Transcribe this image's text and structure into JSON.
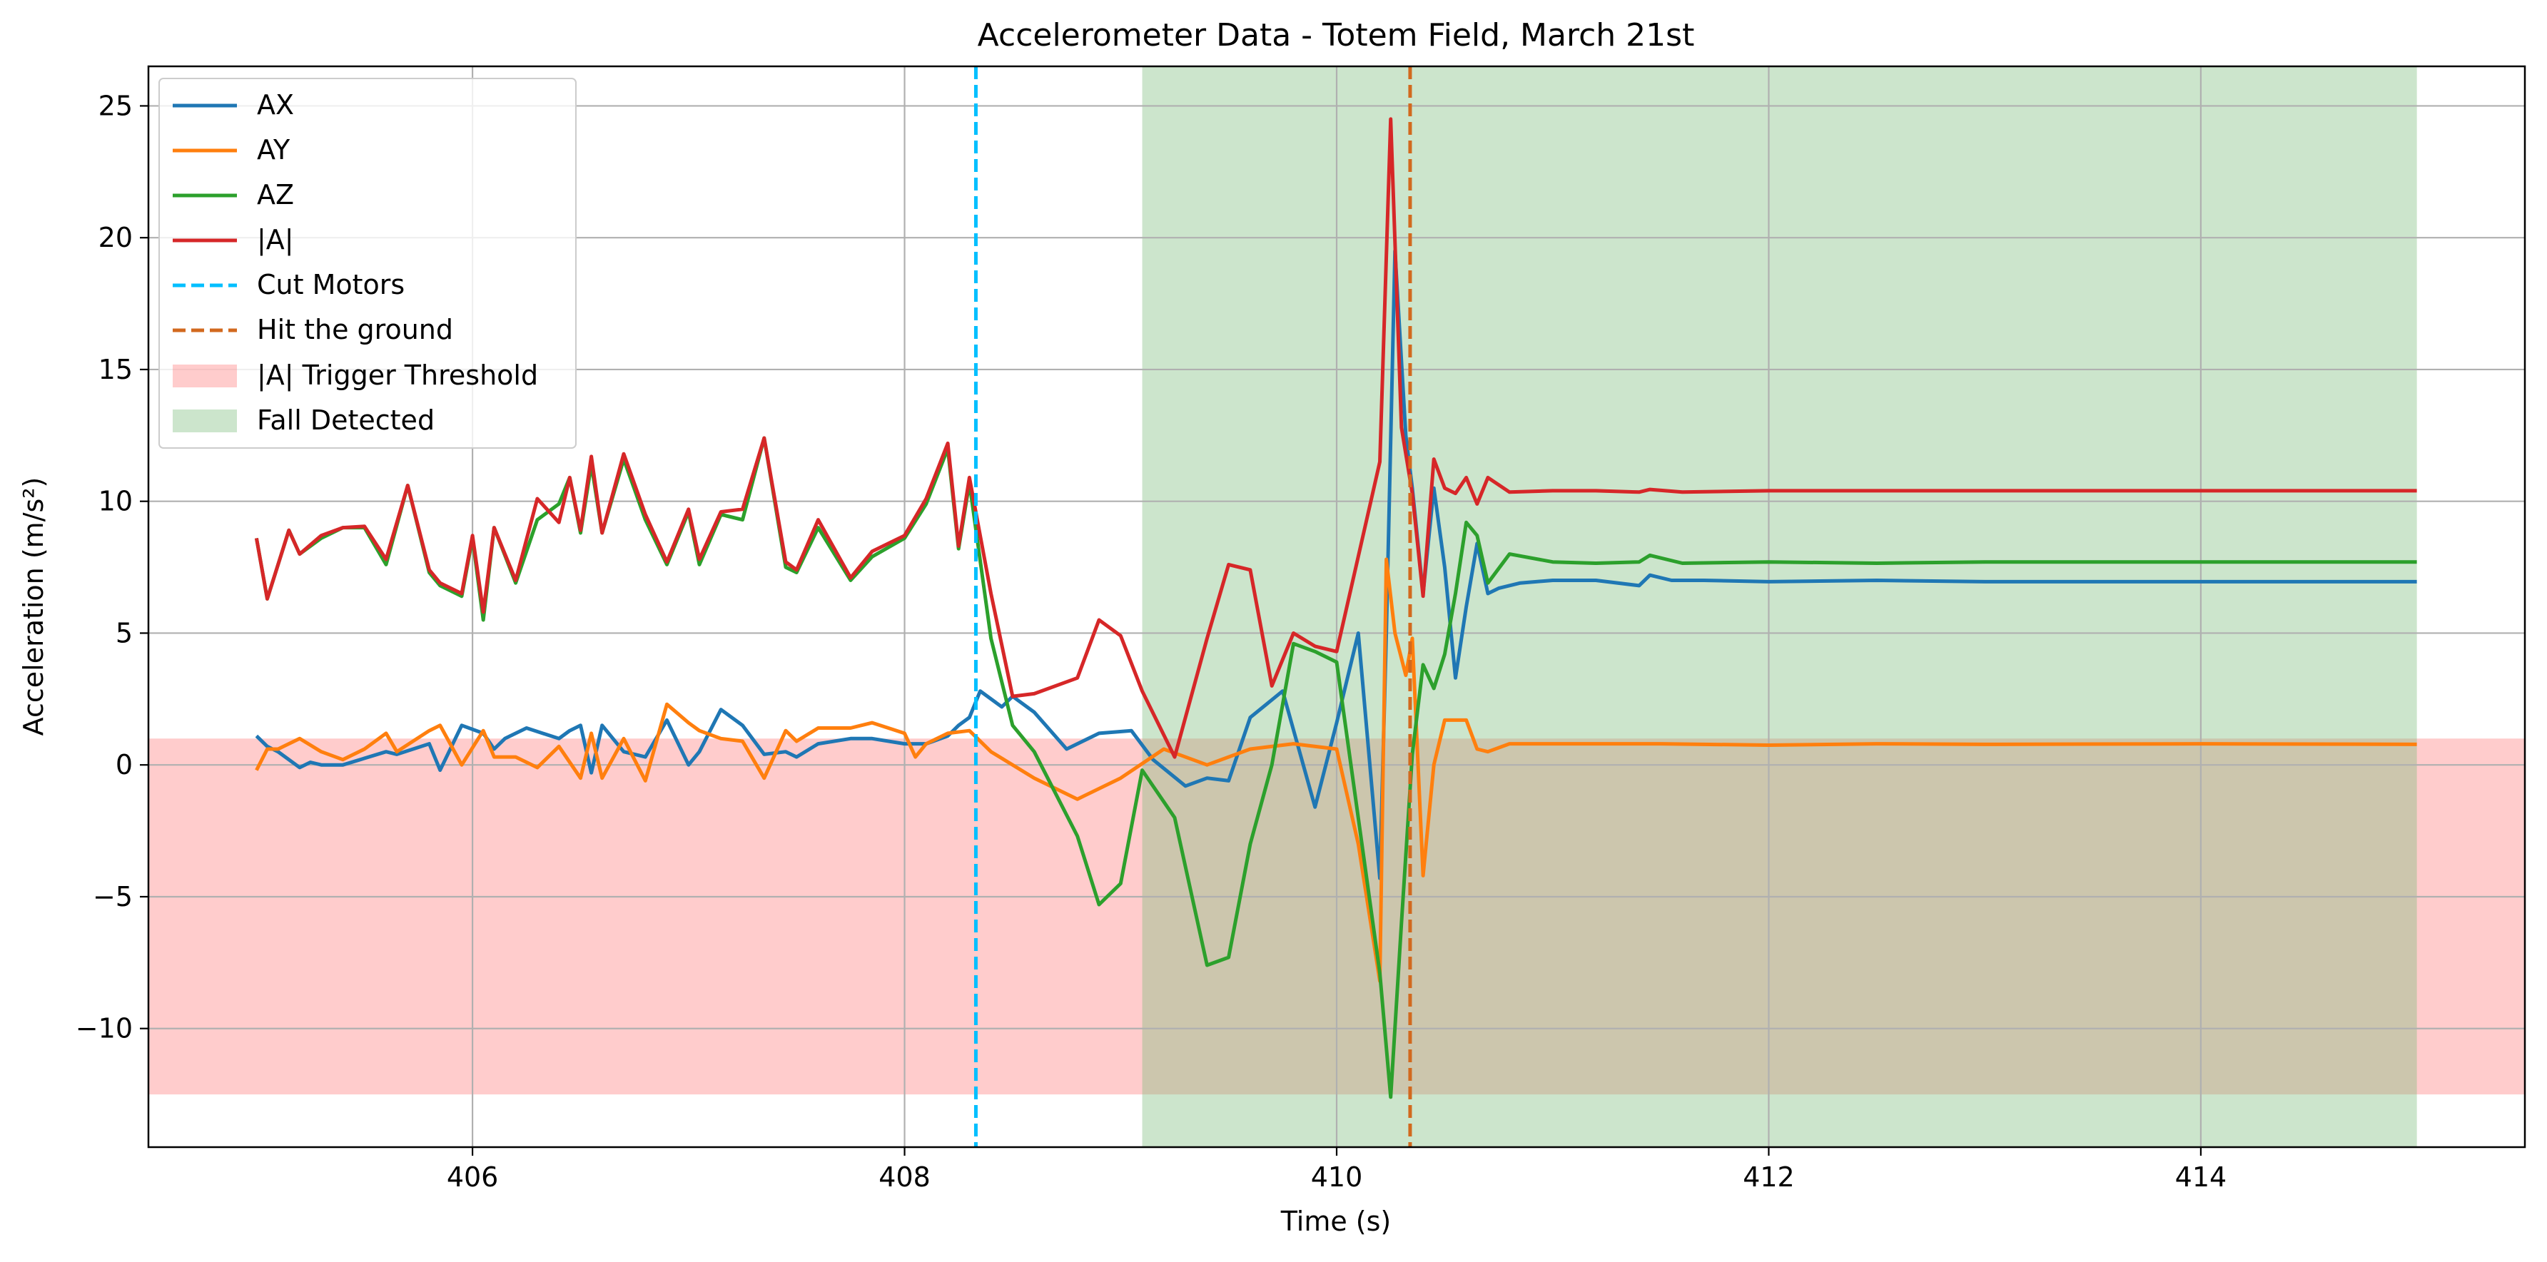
{
  "chart_data": {
    "type": "line",
    "title": "Accelerometer Data - Totem Field, March 21st",
    "xlabel": "Time (s)",
    "ylabel": "Acceleration (m/s²)",
    "xlim": [
      404.5,
      415.5
    ],
    "ylim": [
      -14.5,
      26.5
    ],
    "xticks": [
      406,
      408,
      410,
      412,
      414
    ],
    "xtick_labels": [
      "406",
      "408",
      "410",
      "412",
      "414"
    ],
    "yticks": [
      -10,
      -5,
      0,
      5,
      10,
      15,
      20,
      25
    ],
    "ytick_labels": [
      "−10",
      "−5",
      "0",
      "5",
      "10",
      "15",
      "20",
      "25"
    ],
    "grid": true,
    "legend_position": "top-left",
    "series": [
      {
        "name": "AX",
        "color": "#1f77b4",
        "x": [
          405.0,
          405.05,
          405.1,
          405.2,
          405.25,
          405.3,
          405.4,
          405.6,
          405.65,
          405.8,
          405.85,
          405.95,
          406.05,
          406.1,
          406.15,
          406.25,
          406.4,
          406.45,
          406.5,
          406.55,
          406.6,
          406.7,
          406.8,
          406.9,
          407.0,
          407.05,
          407.15,
          407.25,
          407.35,
          407.45,
          407.5,
          407.6,
          407.75,
          407.85,
          408.0,
          408.1,
          408.2,
          408.25,
          408.3,
          408.35,
          408.45,
          408.5,
          408.6,
          408.75,
          408.9,
          409.05,
          409.15,
          409.3,
          409.4,
          409.5,
          409.6,
          409.75,
          409.9,
          410.0,
          410.1,
          410.2,
          410.23,
          410.27,
          410.32,
          410.35,
          410.4,
          410.45,
          410.5,
          410.55,
          410.6,
          410.65,
          410.7,
          410.75,
          410.85,
          411.0,
          411.2,
          411.4,
          411.45,
          411.55,
          411.7,
          412.0,
          412.5,
          413.0,
          413.5,
          414.0,
          414.5,
          415.0
        ],
        "y": [
          1.1,
          0.7,
          0.5,
          -0.1,
          0.1,
          0.0,
          0.0,
          0.5,
          0.4,
          0.8,
          -0.2,
          1.5,
          1.2,
          0.6,
          1.0,
          1.4,
          1.0,
          1.3,
          1.5,
          -0.3,
          1.5,
          0.5,
          0.3,
          1.7,
          0.0,
          0.5,
          2.1,
          1.5,
          0.4,
          0.5,
          0.3,
          0.8,
          1.0,
          1.0,
          0.8,
          0.8,
          1.1,
          1.5,
          1.8,
          2.8,
          2.2,
          2.6,
          2.0,
          0.6,
          1.2,
          1.3,
          0.2,
          -0.8,
          -0.5,
          -0.6,
          1.8,
          2.8,
          -1.6,
          1.6,
          5.0,
          -4.3,
          5.0,
          19.5,
          12.5,
          10.5,
          6.5,
          10.5,
          7.5,
          3.3,
          6.0,
          8.4,
          6.5,
          6.7,
          6.9,
          7.0,
          7.0,
          6.8,
          7.2,
          7.0,
          7.0,
          6.95,
          7.0,
          6.95,
          6.95,
          6.95,
          6.95,
          6.95
        ]
      },
      {
        "name": "AY",
        "color": "#ff7f0e",
        "x": [
          405.0,
          405.05,
          405.1,
          405.2,
          405.3,
          405.4,
          405.5,
          405.6,
          405.65,
          405.8,
          405.85,
          405.95,
          406.05,
          406.1,
          406.2,
          406.3,
          406.4,
          406.5,
          406.55,
          406.6,
          406.7,
          406.8,
          406.9,
          407.0,
          407.05,
          407.15,
          407.25,
          407.35,
          407.45,
          407.5,
          407.6,
          407.75,
          407.85,
          408.0,
          408.05,
          408.1,
          408.2,
          408.3,
          408.4,
          408.6,
          408.8,
          409.0,
          409.2,
          409.4,
          409.6,
          409.8,
          410.0,
          410.1,
          410.2,
          410.23,
          410.27,
          410.32,
          410.35,
          410.4,
          410.45,
          410.5,
          410.55,
          410.6,
          410.65,
          410.7,
          410.8,
          411.0,
          411.5,
          412.0,
          412.5,
          413.0,
          414.0,
          415.0
        ],
        "y": [
          -0.2,
          0.6,
          0.6,
          1.0,
          0.5,
          0.2,
          0.6,
          1.2,
          0.5,
          1.3,
          1.5,
          0.0,
          1.3,
          0.3,
          0.3,
          -0.1,
          0.7,
          -0.5,
          1.2,
          -0.5,
          1.0,
          -0.6,
          2.3,
          1.6,
          1.3,
          1.0,
          0.9,
          -0.5,
          1.3,
          0.9,
          1.4,
          1.4,
          1.6,
          1.2,
          0.3,
          0.8,
          1.2,
          1.3,
          0.5,
          -0.5,
          -1.3,
          -0.5,
          0.6,
          0.0,
          0.6,
          0.8,
          0.6,
          -3.0,
          -8.2,
          7.8,
          5.0,
          3.4,
          4.8,
          -4.2,
          0.0,
          1.7,
          1.7,
          1.7,
          0.6,
          0.5,
          0.8,
          0.8,
          0.8,
          0.75,
          0.8,
          0.78,
          0.8,
          0.78
        ]
      },
      {
        "name": "AZ",
        "color": "#2ca02c",
        "x": [
          405.0,
          405.05,
          405.15,
          405.2,
          405.3,
          405.4,
          405.5,
          405.6,
          405.7,
          405.8,
          405.85,
          405.95,
          406.0,
          406.05,
          406.1,
          406.2,
          406.3,
          406.4,
          406.45,
          406.5,
          406.55,
          406.6,
          406.7,
          406.8,
          406.9,
          407.0,
          407.05,
          407.15,
          407.25,
          407.35,
          407.45,
          407.5,
          407.6,
          407.75,
          407.85,
          408.0,
          408.1,
          408.2,
          408.25,
          408.3,
          408.4,
          408.5,
          408.6,
          408.8,
          408.9,
          409.0,
          409.1,
          409.25,
          409.4,
          409.5,
          409.6,
          409.7,
          409.8,
          409.9,
          410.0,
          410.2,
          410.25,
          410.3,
          410.35,
          410.4,
          410.45,
          410.5,
          410.55,
          410.6,
          410.65,
          410.7,
          410.8,
          411.0,
          411.2,
          411.4,
          411.45,
          411.6,
          412.0,
          412.5,
          413.0,
          413.5,
          414.0,
          414.5,
          415.0
        ],
        "y": [
          8.6,
          6.3,
          8.9,
          8.0,
          8.6,
          9.0,
          9.0,
          7.6,
          10.6,
          7.3,
          6.8,
          6.4,
          8.6,
          5.5,
          9.0,
          6.9,
          9.3,
          9.9,
          10.9,
          8.8,
          11.4,
          8.8,
          11.6,
          9.3,
          7.6,
          9.6,
          7.6,
          9.5,
          9.3,
          12.4,
          7.5,
          7.3,
          9.0,
          7.0,
          7.9,
          8.6,
          9.9,
          12.0,
          8.2,
          10.7,
          4.8,
          1.5,
          0.5,
          -2.7,
          -5.3,
          -4.5,
          -0.2,
          -2.0,
          -7.6,
          -7.3,
          -3.0,
          0.0,
          4.6,
          4.3,
          3.9,
          -7.9,
          -12.6,
          -6.0,
          0.4,
          3.8,
          2.9,
          4.2,
          6.5,
          9.2,
          8.7,
          6.9,
          8.0,
          7.7,
          7.65,
          7.7,
          7.95,
          7.65,
          7.7,
          7.65,
          7.7,
          7.7,
          7.7,
          7.7,
          7.7
        ]
      },
      {
        "name": "|A|",
        "color": "#d62728",
        "x": [
          405.0,
          405.05,
          405.15,
          405.2,
          405.3,
          405.4,
          405.5,
          405.6,
          405.7,
          405.8,
          405.85,
          405.95,
          406.0,
          406.05,
          406.1,
          406.2,
          406.3,
          406.4,
          406.45,
          406.5,
          406.55,
          406.6,
          406.7,
          406.8,
          406.9,
          407.0,
          407.05,
          407.15,
          407.25,
          407.35,
          407.45,
          407.5,
          407.6,
          407.75,
          407.85,
          408.0,
          408.1,
          408.2,
          408.25,
          408.3,
          408.4,
          408.5,
          408.6,
          408.8,
          408.9,
          409.0,
          409.1,
          409.25,
          409.4,
          409.5,
          409.6,
          409.7,
          409.8,
          409.9,
          410.0,
          410.2,
          410.25,
          410.3,
          410.35,
          410.4,
          410.45,
          410.5,
          410.55,
          410.6,
          410.65,
          410.7,
          410.8,
          411.0,
          411.2,
          411.4,
          411.45,
          411.6,
          412.0,
          412.5,
          413.0,
          413.5,
          414.0,
          414.5,
          415.0
        ],
        "y": [
          8.6,
          6.3,
          8.9,
          8.0,
          8.7,
          9.0,
          9.05,
          7.8,
          10.6,
          7.4,
          6.9,
          6.5,
          8.7,
          5.8,
          9.0,
          7.0,
          10.1,
          9.2,
          10.9,
          8.9,
          11.7,
          8.8,
          11.8,
          9.5,
          7.7,
          9.7,
          7.8,
          9.6,
          9.7,
          12.4,
          7.7,
          7.4,
          9.3,
          7.1,
          8.1,
          8.7,
          10.1,
          12.2,
          8.3,
          10.9,
          6.5,
          2.6,
          2.7,
          3.3,
          5.5,
          4.9,
          2.8,
          0.3,
          4.8,
          7.6,
          7.4,
          3.0,
          5.0,
          4.5,
          4.3,
          11.5,
          24.5,
          12.8,
          10.3,
          6.4,
          11.6,
          10.5,
          10.3,
          10.9,
          9.9,
          10.9,
          10.35,
          10.4,
          10.4,
          10.35,
          10.45,
          10.35,
          10.4,
          10.4,
          10.4,
          10.4,
          10.4,
          10.4,
          10.4
        ]
      }
    ],
    "vlines": [
      {
        "name": "Cut Motors",
        "x": 408.33,
        "color": "#00bfff"
      },
      {
        "name": "Hit the ground",
        "x": 410.34,
        "color": "#d2691e"
      }
    ],
    "spans": [
      {
        "name": "|A| Trigger Threshold",
        "orientation": "horizontal",
        "from": -12.5,
        "to": 1.0,
        "color": "#ff7f7f"
      },
      {
        "name": "Fall Detected",
        "orientation": "vertical",
        "from": 409.1,
        "to": 415.0,
        "color": "#7fbf7f"
      }
    ]
  }
}
